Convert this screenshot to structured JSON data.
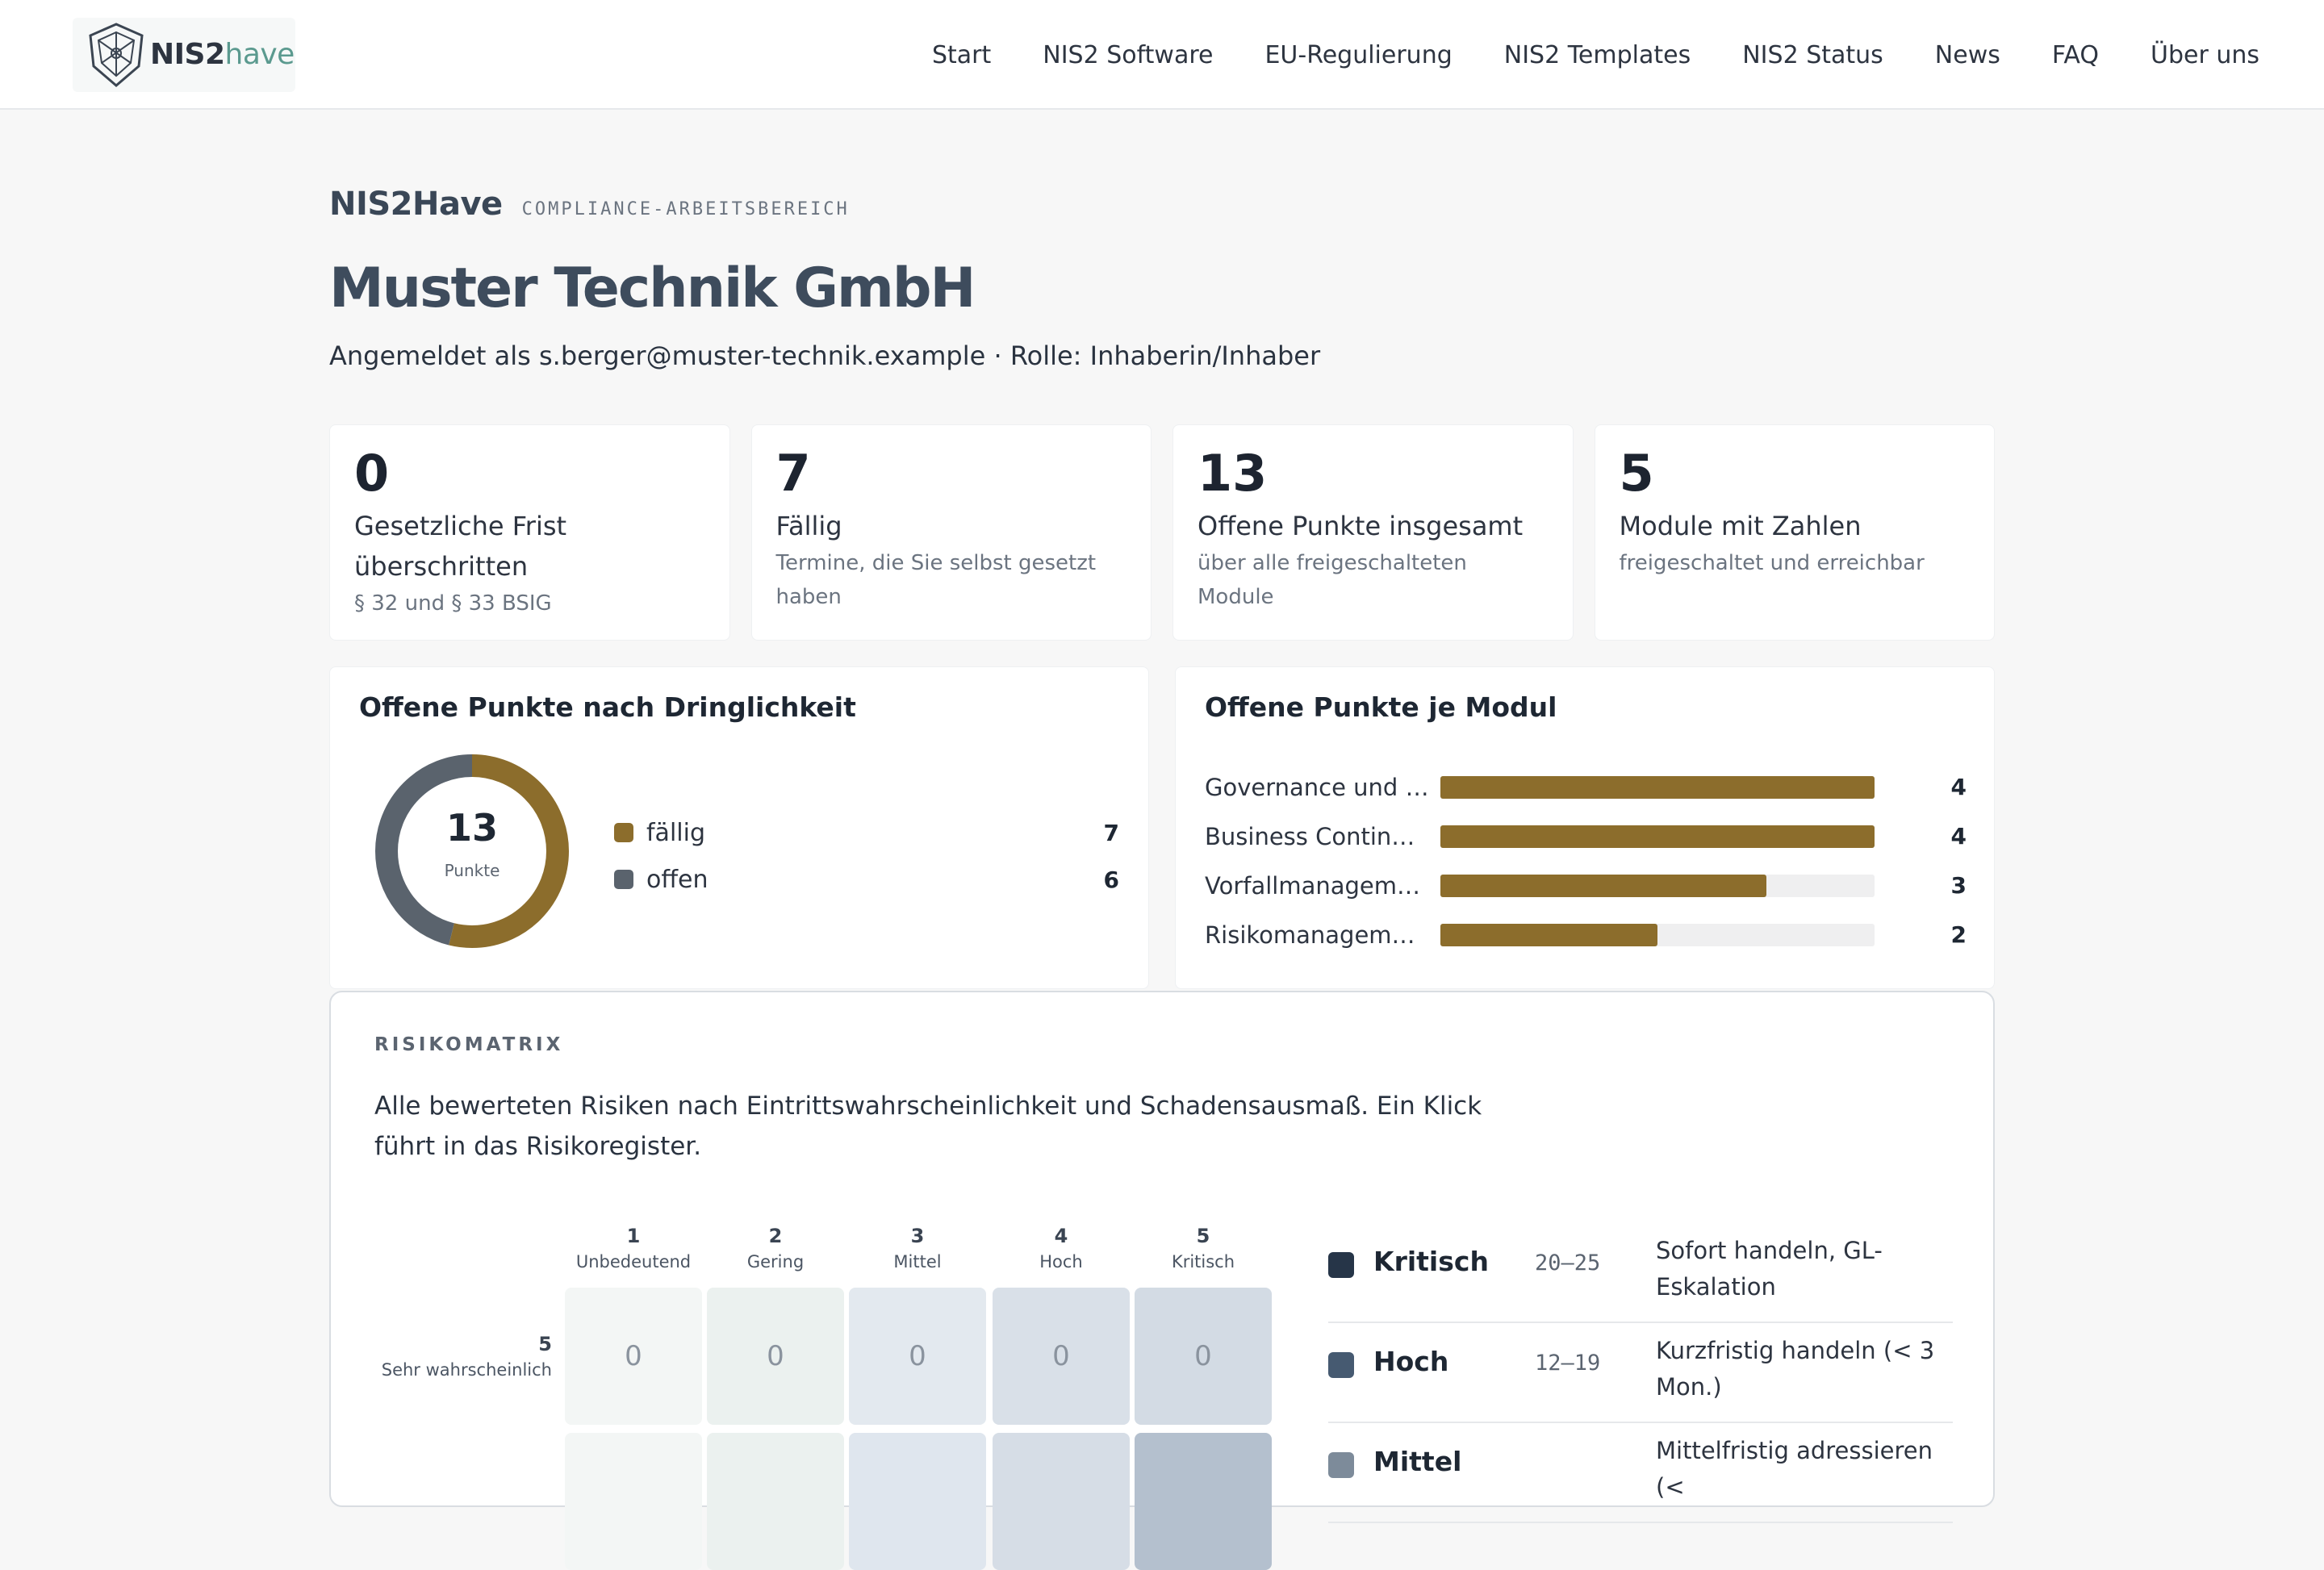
{
  "header": {
    "logo_bold": "NIS2",
    "logo_light": "have",
    "nav": [
      "Start",
      "NIS2 Software",
      "EU-Regulierung",
      "NIS2 Templates",
      "NIS2 Status",
      "News",
      "FAQ",
      "Über uns"
    ]
  },
  "page": {
    "brand": "NIS2Have",
    "workspace": "COMPLIANCE-ARBEITSBEREICH",
    "company": "Muster Technik GmbH",
    "user_line": "Angemeldet als s.berger@muster-technik.example · Rolle: Inhaberin/Inhaber"
  },
  "stats": [
    {
      "value": "0",
      "label": "Gesetzliche Frist überschritten",
      "sub": "§ 32 und § 33 BSIG"
    },
    {
      "value": "7",
      "label": "Fällig",
      "sub": "Termine, die Sie selbst gesetzt haben"
    },
    {
      "value": "13",
      "label": "Offene Punkte insgesamt",
      "sub": "über alle freigeschalteten Module"
    },
    {
      "value": "5",
      "label": "Module mit Zahlen",
      "sub": "freigeschaltet und erreichbar"
    }
  ],
  "urgency": {
    "title": "Offene Punkte nach Dringlichkeit",
    "total": "13",
    "total_label": "Punkte",
    "segments": [
      {
        "label": "fällig",
        "value": 7,
        "color": "#8c6d2c"
      },
      {
        "label": "offen",
        "value": 6,
        "color": "#5a636d"
      }
    ]
  },
  "modules": {
    "title": "Offene Punkte je Modul",
    "max": 4,
    "items": [
      {
        "label": "Governance und Ri…",
        "value": 4
      },
      {
        "label": "Business Continuity",
        "value": 4
      },
      {
        "label": "Vorfallmanagement",
        "value": 3
      },
      {
        "label": "Risikomanagement",
        "value": 2
      }
    ]
  },
  "matrix": {
    "eyebrow": "RISIKOMATRIX",
    "description": "Alle bewerteten Risiken nach Eintrittswahrscheinlichkeit und Schadensausmaß. Ein Klick führt in das Risikoregister.",
    "columns": [
      {
        "num": "1",
        "label": "Unbedeutend"
      },
      {
        "num": "2",
        "label": "Gering"
      },
      {
        "num": "3",
        "label": "Mittel"
      },
      {
        "num": "4",
        "label": "Hoch"
      },
      {
        "num": "5",
        "label": "Kritisch"
      }
    ],
    "rows": [
      {
        "num": "5",
        "label": "Sehr wahrscheinlich",
        "cells": [
          "0",
          "0",
          "0",
          "0",
          "0"
        ],
        "colors": [
          "#f3f6f5",
          "#ebf1ef",
          "#e3e9ef",
          "#d9e0e8",
          "#d3dbe4"
        ]
      },
      {
        "num": "",
        "label": "",
        "cells": [
          "",
          "",
          "",
          "",
          ""
        ],
        "colors": [
          "#f3f6f5",
          "#ebf1ef",
          "#dfe6ee",
          "#d6dde6",
          "#b4c0ce"
        ]
      }
    ],
    "severities": [
      {
        "name": "Kritisch",
        "range": "20–25",
        "desc": "Sofort handeln, GL-Eskalation",
        "color": "#263548"
      },
      {
        "name": "Hoch",
        "range": "12–19",
        "desc": "Kurzfristig handeln (< 3 Mon.)",
        "color": "#465a71"
      },
      {
        "name": "Mittel",
        "range": "",
        "desc": "Mittelfristig adressieren (<",
        "color": "#7d8b9a"
      }
    ]
  }
}
